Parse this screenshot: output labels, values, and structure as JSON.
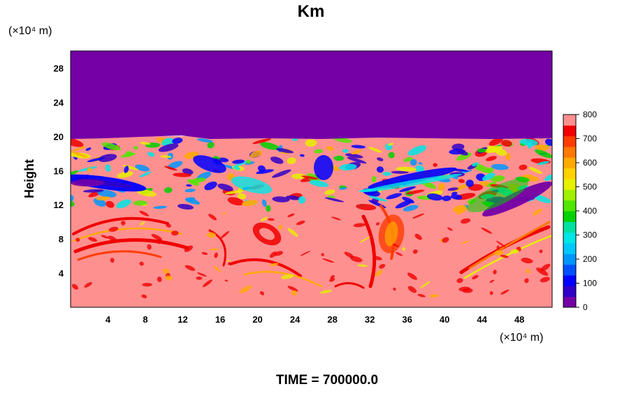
{
  "chart_data": {
    "type": "heatmap",
    "title": "Km",
    "xlabel": "",
    "ylabel": "Height",
    "x_unit": "(×10⁴ m)",
    "y_unit": "(×10⁴ m)",
    "x_range": [
      0,
      51.5
    ],
    "y_range": [
      0,
      30
    ],
    "x_ticks": [
      "4",
      "8",
      "12",
      "16",
      "20",
      "24",
      "28",
      "32",
      "36",
      "40",
      "44",
      "48"
    ],
    "y_ticks": [
      "4",
      "8",
      "12",
      "16",
      "20",
      "24",
      "28"
    ],
    "colorbar": {
      "ticks": [
        "0",
        "100",
        "200",
        "300",
        "400",
        "500",
        "600",
        "700",
        "800"
      ],
      "min": 0,
      "max": 800,
      "colors": [
        "#7400a6",
        "#3000c8",
        "#0000ff",
        "#0050ff",
        "#0096ff",
        "#00c8ff",
        "#00e6e6",
        "#00e0a0",
        "#00d200",
        "#50e600",
        "#a0f000",
        "#e6f000",
        "#ffd200",
        "#ffaa00",
        "#ff7800",
        "#ff3c00",
        "#f00000",
        "#ff9090"
      ]
    },
    "footer": "TIME = 700000.0"
  },
  "colors": {
    "background": "#ffffff",
    "upper_layer": "#7400a6",
    "lower_layer": "#ff9090"
  }
}
